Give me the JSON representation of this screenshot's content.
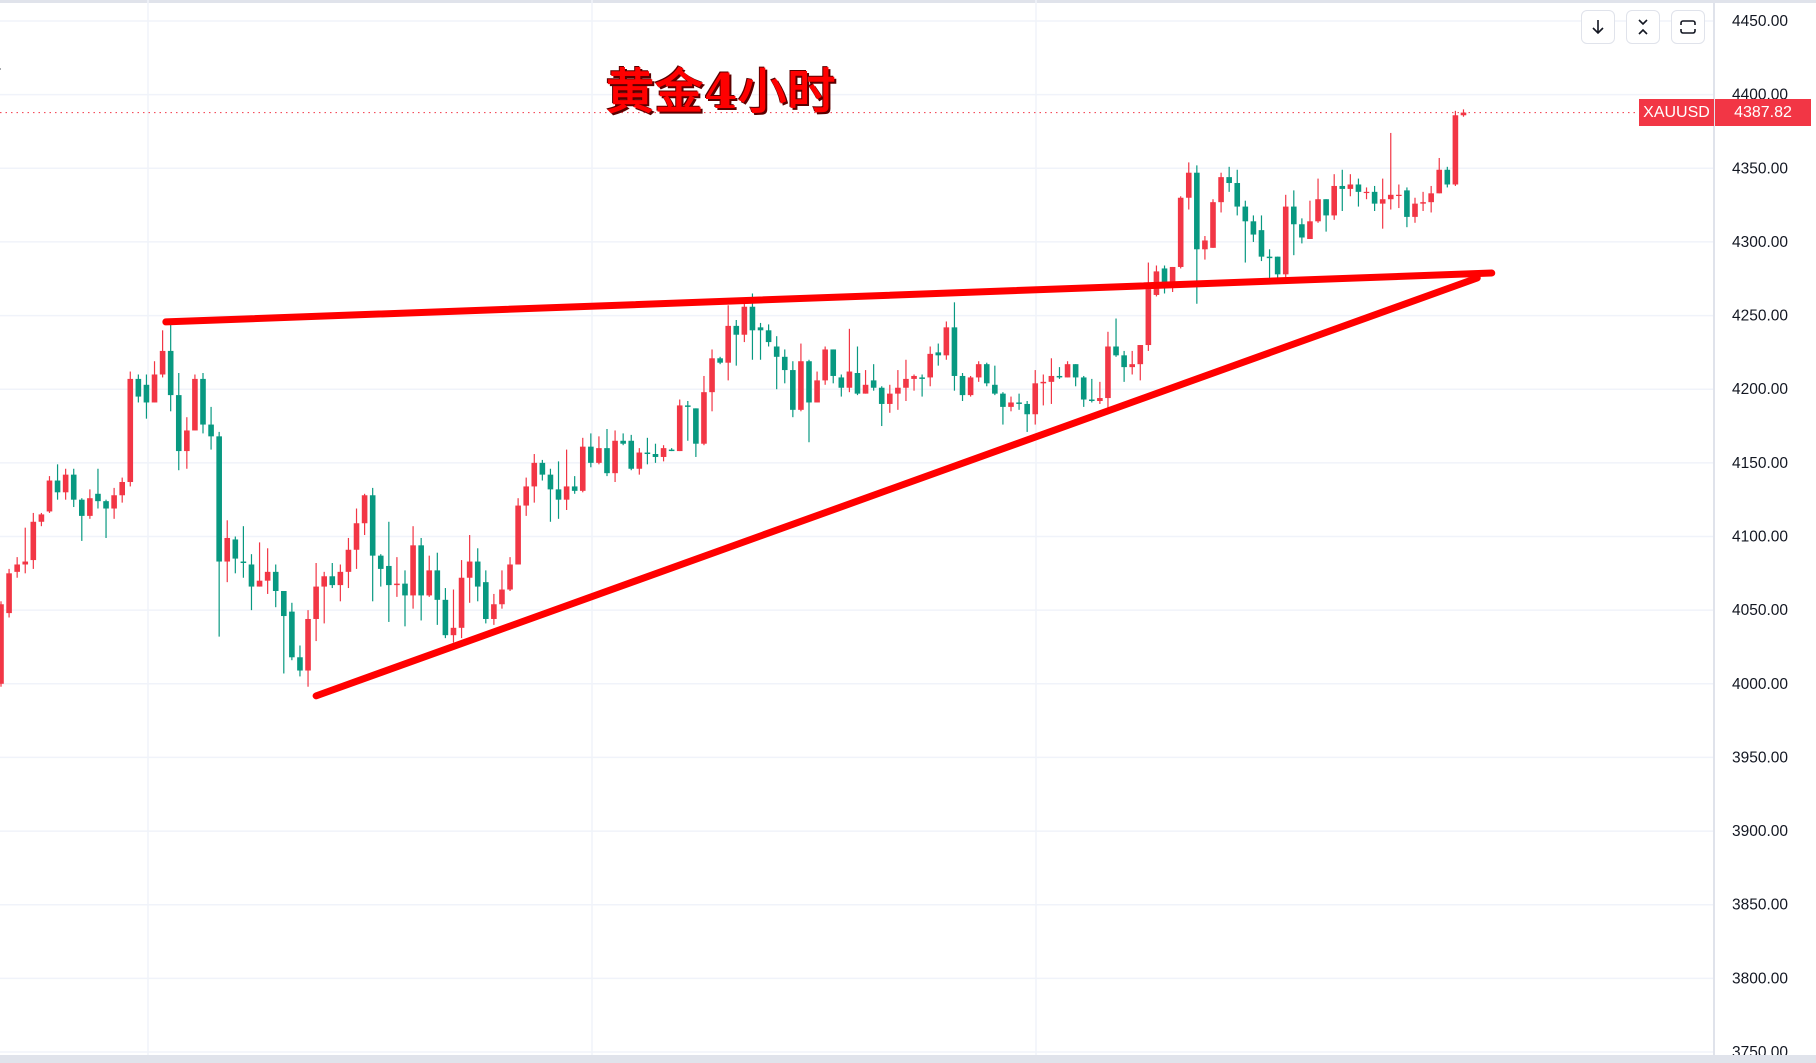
{
  "title": "黄金4小时",
  "symbol_tag": "XAUUSD",
  "last_price_tag": "4387.82",
  "toolbar": {
    "buttons": [
      {
        "name": "scroll-to-latest",
        "icon": "arrow-down-icon"
      },
      {
        "name": "collapse",
        "icon": "collapse-icon"
      },
      {
        "name": "fullscreen",
        "icon": "fullscreen-icon"
      }
    ]
  },
  "colors": {
    "up": "#f23645",
    "down": "#089981",
    "trendline": "#ff0000",
    "grid": "#f0f3fa",
    "title": "#ff0000"
  },
  "chart_data": {
    "type": "candlestick",
    "symbol": "XAUUSD",
    "last_price": 4387.82,
    "ylim": [
      3750,
      4450
    ],
    "y_ticks": [
      "4450.00",
      "4400.00",
      "4350.00",
      "4300.00",
      "4250.00",
      "4200.00",
      "4150.00",
      "4100.00",
      "4050.00",
      "4000.00",
      "3950.00",
      "3900.00",
      "3850.00",
      "3800.00",
      "3750.00"
    ],
    "grid": true,
    "candle_fields": [
      "open",
      "high",
      "low",
      "close"
    ],
    "candles": [
      [
        4000,
        4056,
        3998,
        4054
      ],
      [
        4048,
        4078,
        4045,
        4075
      ],
      [
        4076,
        4086,
        4072,
        4081
      ],
      [
        4081,
        4106,
        4075,
        4083
      ],
      [
        4084,
        4116,
        4078,
        4110
      ],
      [
        4110,
        4116,
        4107,
        4115
      ],
      [
        4117,
        4141,
        4116,
        4138
      ],
      [
        4138,
        4149,
        4125,
        4130
      ],
      [
        4130,
        4146,
        4125,
        4142
      ],
      [
        4142,
        4146,
        4120,
        4125
      ],
      [
        4125,
        4126,
        4097,
        4114
      ],
      [
        4114,
        4132,
        4112,
        4126
      ],
      [
        4129,
        4146,
        4119,
        4124
      ],
      [
        4124,
        4125,
        4099,
        4119
      ],
      [
        4119,
        4133,
        4112,
        4128
      ],
      [
        4128,
        4140,
        4123,
        4137
      ],
      [
        4137,
        4212,
        4134,
        4207
      ],
      [
        4207,
        4210,
        4191,
        4195
      ],
      [
        4203,
        4210,
        4180,
        4191
      ],
      [
        4191,
        4219,
        4191,
        4210
      ],
      [
        4210,
        4240,
        4208,
        4226
      ],
      [
        4226,
        4245,
        4185,
        4196
      ],
      [
        4196,
        4211,
        4145,
        4158
      ],
      [
        4158,
        4181,
        4146,
        4172
      ],
      [
        4172,
        4210,
        4172,
        4207
      ],
      [
        4207,
        4211,
        4170,
        4176
      ],
      [
        4176,
        4188,
        4159,
        4168
      ],
      [
        4168,
        4171,
        4032,
        4083
      ],
      [
        4083,
        4111,
        4069,
        4099
      ],
      [
        4098,
        4100,
        4075,
        4085
      ],
      [
        4083,
        4107,
        4072,
        4082
      ],
      [
        4081,
        4088,
        4050,
        4066
      ],
      [
        4066,
        4096,
        4066,
        4070
      ],
      [
        4070,
        4092,
        4061,
        4076
      ],
      [
        4076,
        4081,
        4052,
        4063
      ],
      [
        4063,
        4063,
        4007,
        4046
      ],
      [
        4049,
        4055,
        4016,
        4018
      ],
      [
        4018,
        4026,
        4005,
        4009
      ],
      [
        4009,
        4050,
        3998,
        4044
      ],
      [
        4044,
        4082,
        4029,
        4066
      ],
      [
        4066,
        4076,
        4041,
        4073
      ],
      [
        4073,
        4082,
        4065,
        4067
      ],
      [
        4067,
        4081,
        4056,
        4076
      ],
      [
        4076,
        4099,
        4065,
        4091
      ],
      [
        4091,
        4119,
        4078,
        4109
      ],
      [
        4109,
        4129,
        4101,
        4128
      ],
      [
        4128,
        4133,
        4056,
        4087
      ],
      [
        4087,
        4088,
        4066,
        4078
      ],
      [
        4080,
        4110,
        4042,
        4067
      ],
      [
        4067,
        4086,
        4059,
        4068
      ],
      [
        4068,
        4077,
        4039,
        4060
      ],
      [
        4060,
        4107,
        4051,
        4094
      ],
      [
        4094,
        4099,
        4043,
        4060
      ],
      [
        4060,
        4087,
        4059,
        4077
      ],
      [
        4077,
        4089,
        4040,
        4057
      ],
      [
        4057,
        4065,
        4031,
        4033
      ],
      [
        4033,
        4064,
        4028,
        4038
      ],
      [
        4038,
        4084,
        4031,
        4072
      ],
      [
        4072,
        4101,
        4055,
        4083
      ],
      [
        4083,
        4092,
        4056,
        4066
      ],
      [
        4069,
        4077,
        4041,
        4044
      ],
      [
        4044,
        4061,
        4040,
        4054
      ],
      [
        4054,
        4077,
        4051,
        4064
      ],
      [
        4064,
        4086,
        4063,
        4081
      ],
      [
        4081,
        4126,
        4081,
        4121
      ],
      [
        4121,
        4140,
        4114,
        4134
      ],
      [
        4134,
        4156,
        4123,
        4150
      ],
      [
        4150,
        4152,
        4138,
        4142
      ],
      [
        4142,
        4146,
        4110,
        4132
      ],
      [
        4132,
        4151,
        4112,
        4125
      ],
      [
        4125,
        4159,
        4118,
        4134
      ],
      [
        4134,
        4141,
        4129,
        4131
      ],
      [
        4131,
        4167,
        4130,
        4161
      ],
      [
        4161,
        4170,
        4147,
        4150
      ],
      [
        4150,
        4168,
        4149,
        4160
      ],
      [
        4160,
        4173,
        4141,
        4143
      ],
      [
        4143,
        4172,
        4137,
        4165
      ],
      [
        4165,
        4170,
        4162,
        4163
      ],
      [
        4165,
        4169,
        4145,
        4146
      ],
      [
        4146,
        4160,
        4142,
        4157
      ],
      [
        4157,
        4167,
        4149,
        4156
      ],
      [
        4156,
        4163,
        4150,
        4154
      ],
      [
        4154,
        4162,
        4151,
        4160
      ],
      [
        4159,
        4160,
        4158,
        4158
      ],
      [
        4158,
        4193,
        4158,
        4189
      ],
      [
        4189,
        4192,
        4165,
        4188
      ],
      [
        4187,
        4187,
        4154,
        4163
      ],
      [
        4163,
        4209,
        4162,
        4198
      ],
      [
        4198,
        4227,
        4185,
        4221
      ],
      [
        4221,
        4222,
        4217,
        4218
      ],
      [
        4218,
        4257,
        4206,
        4243
      ],
      [
        4243,
        4247,
        4216,
        4237
      ],
      [
        4237,
        4258,
        4232,
        4256
      ],
      [
        4256,
        4265,
        4220,
        4240
      ],
      [
        4242,
        4245,
        4220,
        4240
      ],
      [
        4240,
        4244,
        4229,
        4232
      ],
      [
        4229,
        4236,
        4200,
        4222
      ],
      [
        4222,
        4227,
        4204,
        4213
      ],
      [
        4213,
        4219,
        4181,
        4186
      ],
      [
        4186,
        4231,
        4185,
        4219
      ],
      [
        4219,
        4220,
        4164,
        4191
      ],
      [
        4191,
        4212,
        4191,
        4206
      ],
      [
        4206,
        4229,
        4203,
        4227
      ],
      [
        4227,
        4227,
        4204,
        4209
      ],
      [
        4208,
        4210,
        4195,
        4201
      ],
      [
        4201,
        4241,
        4198,
        4212
      ],
      [
        4211,
        4229,
        4196,
        4197
      ],
      [
        4197,
        4213,
        4197,
        4203
      ],
      [
        4206,
        4217,
        4199,
        4201
      ],
      [
        4201,
        4202,
        4175,
        4190
      ],
      [
        4190,
        4203,
        4184,
        4197
      ],
      [
        4197,
        4213,
        4186,
        4201
      ],
      [
        4201,
        4220,
        4192,
        4207
      ],
      [
        4207,
        4210,
        4199,
        4209
      ],
      [
        4208,
        4210,
        4195,
        4207
      ],
      [
        4208,
        4229,
        4202,
        4224
      ],
      [
        4225,
        4231,
        4216,
        4223
      ],
      [
        4223,
        4246,
        4220,
        4242
      ],
      [
        4242,
        4259,
        4199,
        4209
      ],
      [
        4209,
        4211,
        4192,
        4196
      ],
      [
        4196,
        4209,
        4195,
        4208
      ],
      [
        4208,
        4219,
        4205,
        4217
      ],
      [
        4217,
        4218,
        4202,
        4204
      ],
      [
        4203,
        4216,
        4196,
        4197
      ],
      [
        4197,
        4198,
        4176,
        4188
      ],
      [
        4188,
        4195,
        4185,
        4191
      ],
      [
        4191,
        4197,
        4186,
        4190
      ],
      [
        4190,
        4192,
        4171,
        4183
      ],
      [
        4183,
        4213,
        4176,
        4204
      ],
      [
        4204,
        4210,
        4189,
        4205
      ],
      [
        4205,
        4221,
        4190,
        4209
      ],
      [
        4209,
        4215,
        4207,
        4208
      ],
      [
        4208,
        4219,
        4208,
        4217
      ],
      [
        4217,
        4217,
        4202,
        4208
      ],
      [
        4208,
        4209,
        4188,
        4193
      ],
      [
        4193,
        4207,
        4191,
        4192
      ],
      [
        4192,
        4205,
        4190,
        4194
      ],
      [
        4194,
        4239,
        4183,
        4229
      ],
      [
        4229,
        4248,
        4222,
        4223
      ],
      [
        4223,
        4226,
        4205,
        4215
      ],
      [
        4215,
        4226,
        4210,
        4217
      ],
      [
        4217,
        4230,
        4206,
        4230
      ],
      [
        4230,
        4286,
        4226,
        4268
      ],
      [
        4264,
        4284,
        4263,
        4280
      ],
      [
        4282,
        4284,
        4265,
        4272
      ],
      [
        4272,
        4283,
        4266,
        4283
      ],
      [
        4283,
        4331,
        4282,
        4330
      ],
      [
        4330,
        4354,
        4322,
        4347
      ],
      [
        4347,
        4352,
        4258,
        4295
      ],
      [
        4295,
        4304,
        4288,
        4301
      ],
      [
        4296,
        4329,
        4296,
        4327
      ],
      [
        4327,
        4347,
        4320,
        4344
      ],
      [
        4344,
        4351,
        4334,
        4340
      ],
      [
        4340,
        4349,
        4318,
        4324
      ],
      [
        4324,
        4328,
        4286,
        4314
      ],
      [
        4314,
        4318,
        4300,
        4305
      ],
      [
        4308,
        4318,
        4287,
        4290
      ],
      [
        4290,
        4295,
        4275,
        4289
      ],
      [
        4290,
        4290,
        4275,
        4278
      ],
      [
        4278,
        4332,
        4276,
        4324
      ],
      [
        4324,
        4335,
        4291,
        4312
      ],
      [
        4312,
        4316,
        4299,
        4303
      ],
      [
        4302,
        4328,
        4302,
        4314
      ],
      [
        4314,
        4343,
        4313,
        4329
      ],
      [
        4329,
        4329,
        4307,
        4318
      ],
      [
        4318,
        4346,
        4315,
        4338
      ],
      [
        4338,
        4349,
        4321,
        4336
      ],
      [
        4336,
        4346,
        4331,
        4339
      ],
      [
        4339,
        4343,
        4324,
        4334
      ],
      [
        4334,
        4337,
        4329,
        4334
      ],
      [
        4334,
        4338,
        4321,
        4326
      ],
      [
        4326,
        4343,
        4309,
        4329
      ],
      [
        4329,
        4374,
        4322,
        4332
      ],
      [
        4332,
        4339,
        4323,
        4332
      ],
      [
        4335,
        4337,
        4310,
        4317
      ],
      [
        4317,
        4330,
        4313,
        4326
      ],
      [
        4326,
        4334,
        4321,
        4327
      ],
      [
        4327,
        4338,
        4320,
        4333
      ],
      [
        4333,
        4357,
        4333,
        4349
      ],
      [
        4349,
        4351,
        4337,
        4339
      ],
      [
        4339,
        4389,
        4338,
        4386
      ],
      [
        4386,
        4390,
        4385,
        4387.82
      ]
    ],
    "trendlines": [
      {
        "name": "upper-resistance",
        "from": {
          "bar": 20.4,
          "price": 4245.7
        },
        "to": {
          "bar": 184.5,
          "price": 4278.9
        }
      },
      {
        "name": "rising-support",
        "from": {
          "bar": 39,
          "price": 3991.8
        },
        "to": {
          "bar": 182.7,
          "price": 4275.5
        }
      }
    ]
  }
}
